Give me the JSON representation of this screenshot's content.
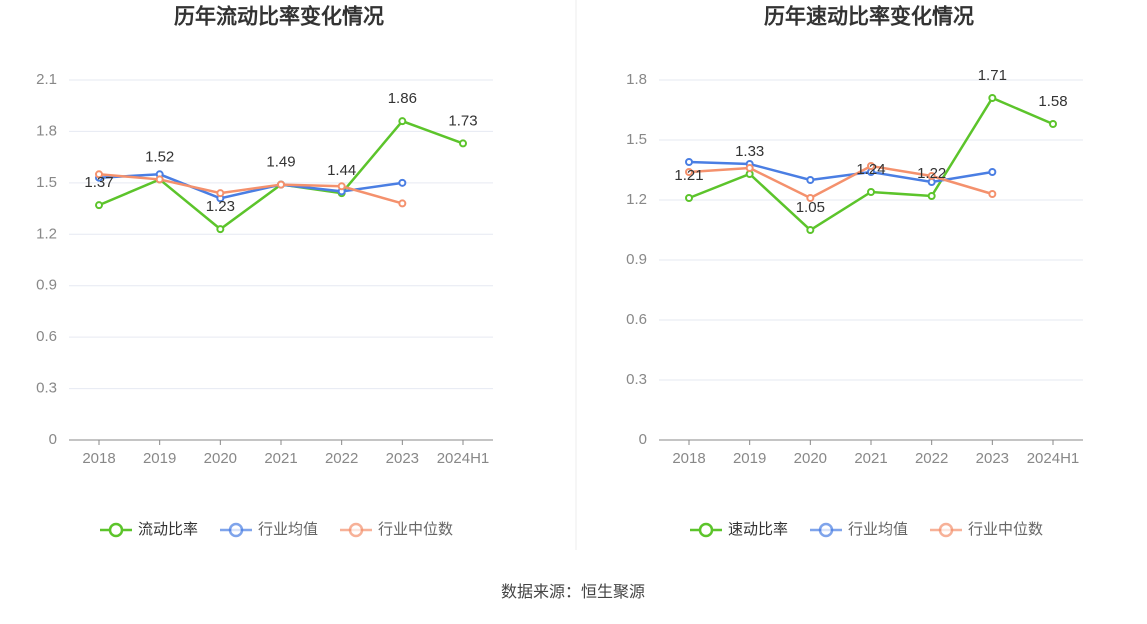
{
  "chart_data": [
    {
      "type": "line",
      "title": "历年流动比率变化情况",
      "categories": [
        "2018",
        "2019",
        "2020",
        "2021",
        "2022",
        "2023",
        "2024H1"
      ],
      "series": [
        {
          "name": "流动比率",
          "color": "#5cc42b",
          "values": [
            1.37,
            1.52,
            1.23,
            1.49,
            1.44,
            1.86,
            1.73
          ],
          "show_labels": true
        },
        {
          "name": "行业均值",
          "color": "#4a7ee3",
          "values": [
            1.53,
            1.55,
            1.41,
            1.49,
            1.45,
            1.5,
            null
          ],
          "show_labels": false
        },
        {
          "name": "行业中位数",
          "color": "#f4916d",
          "values": [
            1.55,
            1.52,
            1.44,
            1.49,
            1.48,
            1.38,
            null
          ],
          "show_labels": false
        }
      ],
      "ylim": [
        0,
        2.1
      ],
      "yticks": [
        0,
        0.3,
        0.6,
        0.9,
        1.2,
        1.5,
        1.8,
        2.1
      ],
      "grid": true,
      "legend": "bottom"
    },
    {
      "type": "line",
      "title": "历年速动比率变化情况",
      "categories": [
        "2018",
        "2019",
        "2020",
        "2021",
        "2022",
        "2023",
        "2024H1"
      ],
      "series": [
        {
          "name": "速动比率",
          "color": "#5cc42b",
          "values": [
            1.21,
            1.33,
            1.05,
            1.24,
            1.22,
            1.71,
            1.58
          ],
          "show_labels": true
        },
        {
          "name": "行业均值",
          "color": "#4a7ee3",
          "values": [
            1.39,
            1.38,
            1.3,
            1.34,
            1.29,
            1.34,
            null
          ],
          "show_labels": false
        },
        {
          "name": "行业中位数",
          "color": "#f4916d",
          "values": [
            1.34,
            1.36,
            1.21,
            1.37,
            1.32,
            1.23,
            null
          ],
          "show_labels": false
        }
      ],
      "ylim": [
        0,
        1.8
      ],
      "yticks": [
        0,
        0.3,
        0.6,
        0.9,
        1.2,
        1.5,
        1.8
      ],
      "grid": true,
      "legend": "bottom"
    }
  ],
  "source": "数据来源：恒生聚源"
}
